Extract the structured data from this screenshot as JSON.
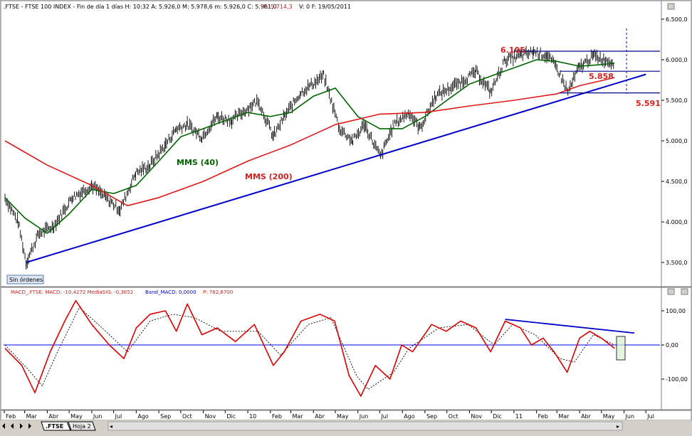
{
  "main_panel": {
    "header": ".FTSE - FTSE 100 INDEX - Fin de día 1 días  H: 10:32  A: 5.926,0  M: 5.978,6  m: 5.926,0  C: 5.961,0",
    "header_p": "P: 5.714,3",
    "header_tail": "V: 0  F: 19/05/2011",
    "badge": "Sin órdenes",
    "y_ticks": [
      "6.500,0",
      "6.000,0",
      "5.500,0",
      "5.000,0",
      "4.500,0",
      "4.000,0",
      "3.500,0"
    ],
    "labels": {
      "mms40": "MMS (40)",
      "mms200": "MMS (200)",
      "level_high": "6.105",
      "level_mid": "5.858",
      "level_low": "5.591"
    }
  },
  "macd_panel": {
    "header": "MACD_.FTSE: MACD: -10,4272  MediaSIG: -0,3652",
    "header_band": "Band_MACD: 0,0000",
    "header_p": "P: 782,6700",
    "y_ticks": [
      "100,00",
      "0,00",
      "-100,00"
    ]
  },
  "x_axis": {
    "labels": [
      "Feb",
      "Mar",
      "Abr",
      "May",
      "Jun",
      "Jul",
      "Ago",
      "Sep",
      "Oct",
      "Nov",
      "Dic",
      "10",
      "Feb",
      "Mar",
      "Abr",
      "May",
      "Jun",
      "Jul",
      "Ago",
      "Sep",
      "Oct",
      "Nov",
      "Dic",
      "11",
      "Feb",
      "Mar",
      "Abr",
      "May",
      "Jun",
      "Jul"
    ]
  },
  "tabs": [
    ".FTSE",
    "Hoja 2"
  ],
  "colors": {
    "price": "#000000",
    "mms40": "#006400",
    "mms200": "#e01818",
    "trendline": "#0000cc",
    "levels": "#00008b",
    "macd": "#e00000",
    "signal": "#000000",
    "zero_line": "#0000ff",
    "labels": "#d82020"
  },
  "chart_data": [
    {
      "type": "line",
      "title": ".FTSE - FTSE 100 INDEX",
      "x_period": [
        "2009-02",
        "2011-07"
      ],
      "ylim": [
        3400,
        6600
      ],
      "series": [
        {
          "kind": "price_bars",
          "points": [
            [
              "2009-02-02",
              4300
            ],
            [
              "2009-02-20",
              4000
            ],
            [
              "2009-03-03",
              3500
            ],
            [
              "2009-03-20",
              3850
            ],
            [
              "2009-04-10",
              3950
            ],
            [
              "2009-05-05",
              4300
            ],
            [
              "2009-06-01",
              4450
            ],
            [
              "2009-06-20",
              4300
            ],
            [
              "2009-07-10",
              4150
            ],
            [
              "2009-07-31",
              4600
            ],
            [
              "2009-08-20",
              4700
            ],
            [
              "2009-09-10",
              4950
            ],
            [
              "2009-09-25",
              5150
            ],
            [
              "2009-10-10",
              5200
            ],
            [
              "2009-10-30",
              5050
            ],
            [
              "2009-11-20",
              5300
            ],
            [
              "2009-12-10",
              5250
            ],
            [
              "2010-01-15",
              5500
            ],
            [
              "2010-02-05",
              5050
            ],
            [
              "2010-02-20",
              5300
            ],
            [
              "2010-03-15",
              5600
            ],
            [
              "2010-04-15",
              5800
            ],
            [
              "2010-05-07",
              5150
            ],
            [
              "2010-05-25",
              5000
            ],
            [
              "2010-06-10",
              5200
            ],
            [
              "2010-07-02",
              4800
            ],
            [
              "2010-07-20",
              5200
            ],
            [
              "2010-08-10",
              5350
            ],
            [
              "2010-08-25",
              5150
            ],
            [
              "2010-09-15",
              5550
            ],
            [
              "2010-10-15",
              5700
            ],
            [
              "2010-11-10",
              5850
            ],
            [
              "2010-11-30",
              5600
            ],
            [
              "2010-12-20",
              6000
            ],
            [
              "2011-01-10",
              6050
            ],
            [
              "2011-01-28",
              6100
            ],
            [
              "2011-02-15",
              6050
            ],
            [
              "2011-03-01",
              5900
            ],
            [
              "2011-03-16",
              5600
            ],
            [
              "2011-03-31",
              5900
            ],
            [
              "2011-04-20",
              6050
            ],
            [
              "2011-05-05",
              6000
            ],
            [
              "2011-05-19",
              5961
            ]
          ]
        },
        {
          "name": "MMS (40)",
          "points": [
            [
              "2009-02-02",
              4300
            ],
            [
              "2009-03-01",
              4050
            ],
            [
              "2009-04-01",
              3860
            ],
            [
              "2009-05-01",
              4100
            ],
            [
              "2009-06-01",
              4400
            ],
            [
              "2009-07-01",
              4350
            ],
            [
              "2009-08-01",
              4450
            ],
            [
              "2009-09-01",
              4750
            ],
            [
              "2009-10-01",
              5050
            ],
            [
              "2009-11-01",
              5150
            ],
            [
              "2009-12-01",
              5250
            ],
            [
              "2010-01-01",
              5350
            ],
            [
              "2010-02-01",
              5300
            ],
            [
              "2010-03-01",
              5350
            ],
            [
              "2010-04-01",
              5550
            ],
            [
              "2010-05-01",
              5650
            ],
            [
              "2010-06-01",
              5300
            ],
            [
              "2010-07-01",
              5150
            ],
            [
              "2010-08-01",
              5150
            ],
            [
              "2010-09-01",
              5300
            ],
            [
              "2010-10-01",
              5500
            ],
            [
              "2010-11-01",
              5700
            ],
            [
              "2010-12-01",
              5800
            ],
            [
              "2011-01-01",
              5900
            ],
            [
              "2011-02-01",
              6000
            ],
            [
              "2011-03-01",
              5980
            ],
            [
              "2011-04-01",
              5920
            ],
            [
              "2011-05-01",
              5940
            ],
            [
              "2011-05-19",
              5960
            ]
          ]
        },
        {
          "name": "MMS (200)",
          "points": [
            [
              "2009-02-02",
              5000
            ],
            [
              "2009-04-01",
              4700
            ],
            [
              "2009-06-01",
              4450
            ],
            [
              "2009-07-20",
              4200
            ],
            [
              "2009-09-01",
              4300
            ],
            [
              "2009-11-01",
              4500
            ],
            [
              "2010-01-01",
              4750
            ],
            [
              "2010-03-01",
              4950
            ],
            [
              "2010-05-01",
              5200
            ],
            [
              "2010-07-01",
              5330
            ],
            [
              "2010-09-01",
              5350
            ],
            [
              "2010-11-01",
              5430
            ],
            [
              "2011-01-01",
              5500
            ],
            [
              "2011-03-01",
              5580
            ],
            [
              "2011-04-01",
              5680
            ],
            [
              "2011-05-19",
              5780
            ]
          ]
        },
        {
          "kind": "trendline",
          "points": [
            [
              "2009-03-03",
              3500
            ],
            [
              "2011-07-01",
              5820
            ]
          ]
        },
        {
          "kind": "horizontal_levels",
          "values": [
            6105,
            5858,
            5591
          ],
          "labels": [
            "6.105",
            "5.858",
            "5.591"
          ]
        }
      ]
    },
    {
      "type": "line",
      "title": "MACD_.FTSE",
      "ylim": [
        -150,
        150
      ],
      "series": [
        {
          "name": "MACD",
          "points": [
            [
              "2009-02-02",
              -10
            ],
            [
              "2009-02-25",
              -60
            ],
            [
              "2009-03-15",
              -140
            ],
            [
              "2009-04-05",
              -20
            ],
            [
              "2009-04-25",
              70
            ],
            [
              "2009-05-10",
              130
            ],
            [
              "2009-06-01",
              60
            ],
            [
              "2009-06-25",
              0
            ],
            [
              "2009-07-15",
              -40
            ],
            [
              "2009-08-01",
              50
            ],
            [
              "2009-08-20",
              90
            ],
            [
              "2009-09-10",
              100
            ],
            [
              "2009-09-25",
              40
            ],
            [
              "2009-10-10",
              120
            ],
            [
              "2009-10-30",
              30
            ],
            [
              "2009-11-20",
              50
            ],
            [
              "2009-12-15",
              10
            ],
            [
              "2010-01-10",
              60
            ],
            [
              "2010-02-05",
              -60
            ],
            [
              "2010-02-20",
              -20
            ],
            [
              "2010-03-15",
              70
            ],
            [
              "2010-04-10",
              90
            ],
            [
              "2010-04-30",
              70
            ],
            [
              "2010-05-20",
              -90
            ],
            [
              "2010-06-05",
              -150
            ],
            [
              "2010-06-25",
              -60
            ],
            [
              "2010-07-15",
              -100
            ],
            [
              "2010-07-31",
              0
            ],
            [
              "2010-08-15",
              -20
            ],
            [
              "2010-09-10",
              60
            ],
            [
              "2010-09-30",
              40
            ],
            [
              "2010-10-20",
              70
            ],
            [
              "2010-11-10",
              50
            ],
            [
              "2010-11-30",
              -20
            ],
            [
              "2010-12-20",
              70
            ],
            [
              "2011-01-10",
              50
            ],
            [
              "2011-01-25",
              0
            ],
            [
              "2011-02-10",
              20
            ],
            [
              "2011-02-25",
              -20
            ],
            [
              "2011-03-15",
              -80
            ],
            [
              "2011-04-01",
              20
            ],
            [
              "2011-04-15",
              40
            ],
            [
              "2011-05-01",
              20
            ],
            [
              "2011-05-19",
              -10
            ]
          ]
        },
        {
          "name": "MediaSIG",
          "points": [
            [
              "2009-02-02",
              0
            ],
            [
              "2009-03-05",
              -70
            ],
            [
              "2009-03-25",
              -120
            ],
            [
              "2009-04-15",
              -20
            ],
            [
              "2009-05-15",
              110
            ],
            [
              "2009-06-10",
              60
            ],
            [
              "2009-07-20",
              -20
            ],
            [
              "2009-08-20",
              70
            ],
            [
              "2009-09-20",
              90
            ],
            [
              "2009-10-20",
              80
            ],
            [
              "2009-11-25",
              40
            ],
            [
              "2010-01-15",
              40
            ],
            [
              "2010-02-15",
              -30
            ],
            [
              "2010-03-25",
              60
            ],
            [
              "2010-04-25",
              80
            ],
            [
              "2010-05-30",
              -90
            ],
            [
              "2010-06-15",
              -130
            ],
            [
              "2010-07-20",
              -80
            ],
            [
              "2010-08-10",
              -10
            ],
            [
              "2010-09-20",
              50
            ],
            [
              "2010-10-30",
              60
            ],
            [
              "2010-12-05",
              0
            ],
            [
              "2010-12-30",
              60
            ],
            [
              "2011-01-30",
              30
            ],
            [
              "2011-03-05",
              -40
            ],
            [
              "2011-03-25",
              -50
            ],
            [
              "2011-04-20",
              30
            ],
            [
              "2011-05-19",
              0
            ]
          ]
        },
        {
          "kind": "trendline",
          "points": [
            [
              "2010-12-20",
              75
            ],
            [
              "2011-06-15",
              35
            ]
          ]
        }
      ]
    }
  ]
}
